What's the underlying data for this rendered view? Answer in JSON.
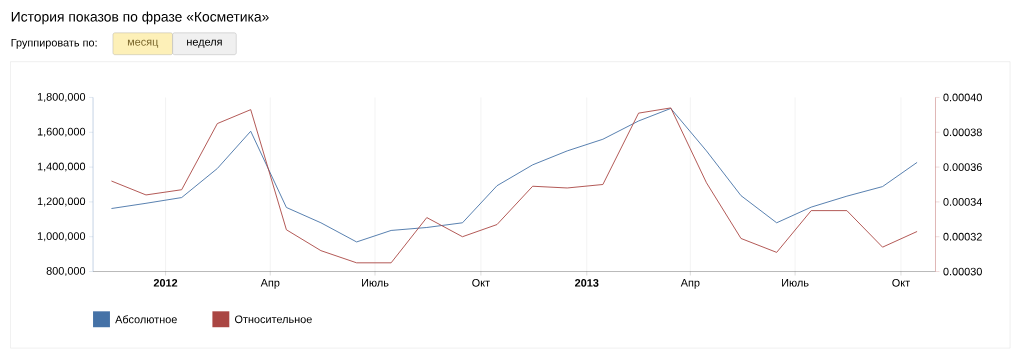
{
  "chart_data": {
    "type": "line",
    "title": "История показов по фразе «Косметика»",
    "annotations": [
      "Группировать по:",
      "месяц",
      "неделя"
    ],
    "x": [
      "2011-11-15",
      "2011-12-15",
      "2012-01-15",
      "2012-02-15",
      "2012-03-15",
      "2012-04-15",
      "2012-05-15",
      "2012-06-15",
      "2012-07-15",
      "2012-08-15",
      "2012-09-15",
      "2012-10-15",
      "2012-11-15",
      "2012-12-15",
      "2013-01-15",
      "2013-02-15",
      "2013-03-15",
      "2013-04-15",
      "2013-05-15",
      "2013-06-15",
      "2013-07-15",
      "2013-08-15",
      "2013-09-15",
      "2013-10-15"
    ],
    "xlim": [
      "2011-10-30",
      "2013-10-31"
    ],
    "xticks": [
      {
        "value": "2012-01-01",
        "label": "2012"
      },
      {
        "value": "2012-04-01",
        "label": "Апр"
      },
      {
        "value": "2012-07-01",
        "label": "Июль"
      },
      {
        "value": "2012-10-01",
        "label": "Окт"
      },
      {
        "value": "2013-01-01",
        "label": "2013"
      },
      {
        "value": "2013-04-01",
        "label": "Апр"
      },
      {
        "value": "2013-07-01",
        "label": "Июль"
      },
      {
        "value": "2013-10-01",
        "label": "Окт"
      }
    ],
    "ylim": [
      800000,
      1800000
    ],
    "yticks": [
      {
        "value": 800000,
        "label": "800,000"
      },
      {
        "value": 1000000,
        "label": "1,000,000"
      },
      {
        "value": 1200000,
        "label": "1,200,000"
      },
      {
        "value": 1400000,
        "label": "1,400,000"
      },
      {
        "value": 1600000,
        "label": "1,600,000"
      },
      {
        "value": 1800000,
        "label": "1,800,000"
      }
    ],
    "y2lim": [
      0.0003,
      0.0004
    ],
    "y2ticks": [
      {
        "value": 0.0003,
        "label": "0.00030"
      },
      {
        "value": 0.00032,
        "label": "0.00032"
      },
      {
        "value": 0.00034,
        "label": "0.00034"
      },
      {
        "value": 0.00036,
        "label": "0.00036"
      },
      {
        "value": 0.00038,
        "label": "0.00038"
      },
      {
        "value": 0.0004,
        "label": "0.00040"
      }
    ],
    "grid": "x",
    "legend": "bottom",
    "series": [
      {
        "name": "Абсолютное",
        "color": "#4572a7",
        "values": [
          1162000,
          1192000,
          1225000,
          1392000,
          1606000,
          1168000,
          1080000,
          970000,
          1036000,
          1053000,
          1080000,
          1293000,
          1413000,
          1493000,
          1560000,
          1665000,
          1737000,
          1493000,
          1236000,
          1080000,
          1170000,
          1233000,
          1288000,
          1427000
        ]
      },
      {
        "name": "Относительное",
        "color": "#aa4643",
        "axis": "y2",
        "values": [
          0.000352,
          0.000344,
          0.000347,
          0.000385,
          0.000393,
          0.000324,
          0.000312,
          0.000305,
          0.000305,
          0.000331,
          0.00032,
          0.000327,
          0.000349,
          0.000348,
          0.00035,
          0.000391,
          0.000394,
          0.000351,
          0.000319,
          0.000311,
          0.000335,
          0.000335,
          0.000314,
          0.000323
        ]
      }
    ]
  }
}
